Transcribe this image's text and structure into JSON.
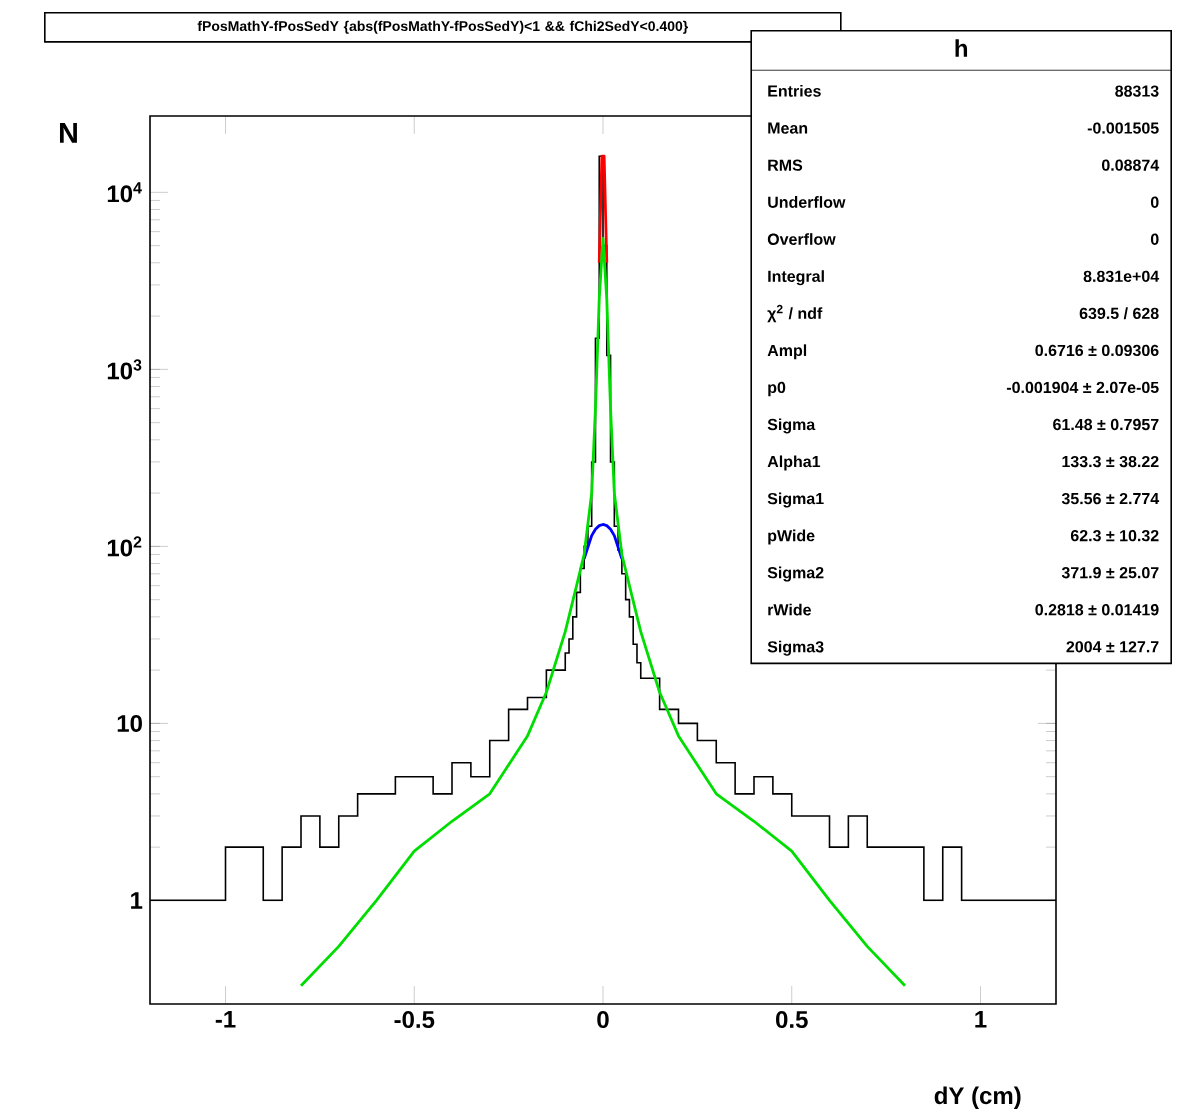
{
  "chart_data": {
    "type": "histogram",
    "title": "fPosMathY-fPosSedY {abs(fPosMathY-fPosSedY)<1 && fChi2SedY<0.400}",
    "xlabel": "dY    (cm)",
    "ylabel": "N",
    "bins": [
      -1.2,
      -1.15,
      -1.1,
      -1.05,
      -1.0,
      -0.95,
      -0.9,
      -0.85,
      -0.8,
      -0.75,
      -0.7,
      -0.65,
      -0.6,
      -0.55,
      -0.5,
      -0.45,
      -0.4,
      -0.35,
      -0.3,
      -0.25,
      -0.2,
      -0.15,
      -0.1,
      -0.09,
      -0.08,
      -0.07,
      -0.06,
      -0.05,
      -0.04,
      -0.03,
      -0.02,
      -0.01,
      0,
      0.01,
      0.02,
      0.03,
      0.04,
      0.05,
      0.06,
      0.07,
      0.08,
      0.09,
      0.1,
      0.15,
      0.2,
      0.25,
      0.3,
      0.35,
      0.4,
      0.45,
      0.5,
      0.55,
      0.6,
      0.65,
      0.7,
      0.75,
      0.8,
      0.85,
      0.9,
      0.95,
      1.0,
      1.05,
      1.1,
      1.15,
      1.2
    ],
    "series": [
      {
        "color": "#000000",
        "values": [
          1,
          1,
          1,
          1,
          2,
          2,
          1,
          2,
          3,
          2,
          3,
          4,
          4,
          5,
          5,
          4,
          6,
          5,
          8,
          12,
          14,
          20,
          25,
          30,
          40,
          55,
          75,
          100,
          130,
          300,
          1500,
          16000,
          5000,
          1200,
          300,
          130,
          95,
          70,
          50,
          40,
          28,
          22,
          18,
          12,
          10,
          8,
          6,
          4,
          5,
          4,
          3,
          3,
          2,
          3,
          2,
          2,
          2,
          1,
          2,
          1,
          1,
          1,
          1,
          1
        ]
      },
      {
        "type": "line",
        "color": "#ff0000",
        "x": [
          -0.01,
          -0.003,
          0.003,
          0.01
        ],
        "values": [
          4000,
          16000,
          16000,
          4000
        ]
      },
      {
        "type": "line",
        "color": "#0000ff",
        "x": [
          -0.05,
          -0.03,
          -0.02,
          -0.01,
          0,
          0.01,
          0.02,
          0.03,
          0.05
        ],
        "values": [
          85,
          115,
          125,
          131,
          133,
          131,
          125,
          115,
          85
        ]
      },
      {
        "type": "line",
        "color": "#00dd00",
        "x": [
          -0.8,
          -0.7,
          -0.6,
          -0.5,
          -0.4,
          -0.3,
          -0.2,
          -0.15,
          -0.1,
          -0.07,
          -0.05,
          -0.03,
          -0.02,
          -0.01,
          0,
          0.01,
          0.02,
          0.03,
          0.05,
          0.07,
          0.1,
          0.15,
          0.2,
          0.3,
          0.4,
          0.5,
          0.6,
          0.7,
          0.8
        ],
        "values": [
          0.33,
          0.55,
          1.0,
          1.9,
          2.8,
          4,
          8.5,
          15,
          33,
          60,
          90,
          200,
          600,
          2500,
          5500,
          2500,
          600,
          200,
          90,
          60,
          33,
          15,
          8.5,
          4,
          2.8,
          1.9,
          1.0,
          0.55,
          0.33
        ]
      }
    ],
    "xlim": [
      -1.2,
      1.2
    ],
    "ylim": [
      0.26,
      27000
    ],
    "log": "y",
    "xticks": [
      -1,
      -0.5,
      0,
      0.5,
      1
    ],
    "yticks": [
      1,
      10,
      {
        "value": 100,
        "label": "10$^{2}$"
      },
      {
        "value": 1000,
        "label": "10$^{3}$"
      },
      {
        "value": 10000,
        "label": "10$^{4}$"
      }
    ],
    "annotations": [
      "h",
      "Entries",
      "88313",
      "Mean",
      "-0.001505",
      "RMS",
      "0.08874",
      "Underflow",
      "0",
      "Overflow",
      "0",
      "Integral",
      "8.831e+04",
      "χ$^{2}$ / ndf",
      "639.5 / 628",
      "Ampl",
      "0.6716 ± 0.09306",
      "p0",
      "-0.001904 ± 2.07e-05",
      "Sigma",
      "61.48 ± 0.7957",
      "Alpha1",
      "133.3 ± 38.22",
      "Sigma1",
      "35.56 ± 2.774",
      "pWide",
      "62.3 ± 10.32",
      "Sigma2",
      "371.9 ± 25.07",
      "rWide",
      "0.2818 ± 0.01419",
      "Sigma3",
      "2004 ± 127.7"
    ]
  }
}
